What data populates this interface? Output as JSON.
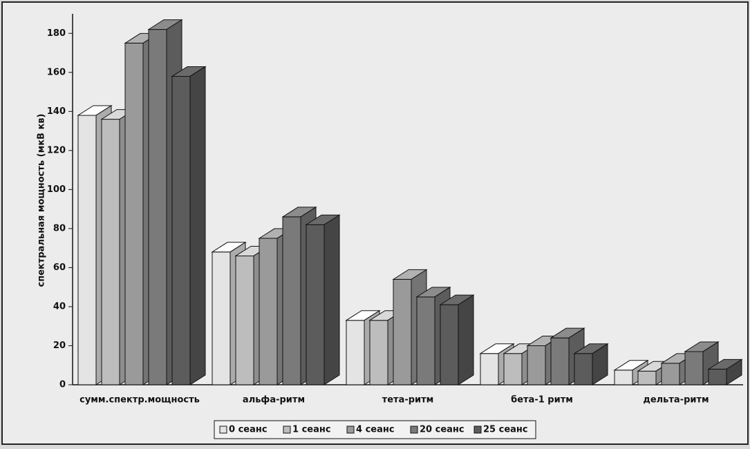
{
  "chart_data": {
    "type": "bar3d",
    "y_label": "спектральная мощность (мкВ кв)",
    "categories": [
      "сумм.спектр.мощность",
      "альфа-ритм",
      "тета-ритм",
      "бета-1 ритм",
      "дельта-ритм"
    ],
    "series": [
      {
        "name": "0 сеанс",
        "color": "#e4e4e4",
        "values": [
          138,
          68,
          33,
          16,
          7.5
        ]
      },
      {
        "name": "1 сеанс",
        "color": "#bdbdbd",
        "values": [
          136,
          66,
          33,
          16,
          7
        ]
      },
      {
        "name": "4 сеанс",
        "color": "#9a9a9a",
        "values": [
          175,
          75,
          54,
          20,
          11
        ]
      },
      {
        "name": "20 сеанс",
        "color": "#7a7a7a",
        "values": [
          182,
          86,
          45,
          24,
          17
        ]
      },
      {
        "name": "25 сеанс",
        "color": "#5c5c5c",
        "values": [
          158,
          82,
          41,
          16,
          8
        ]
      }
    ],
    "ylim": [
      0,
      190
    ],
    "yticks": [
      0,
      20,
      40,
      60,
      80,
      100,
      120,
      140,
      160,
      180
    ],
    "legend": "bottom"
  }
}
